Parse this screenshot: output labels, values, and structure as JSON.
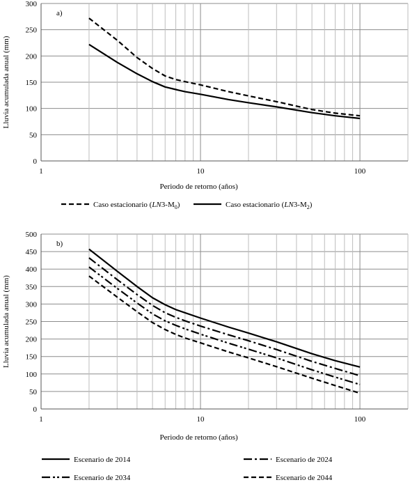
{
  "chart_data": [
    {
      "type": "line",
      "panel_label": "a)",
      "xlabel": "Periodo de retorno (años)",
      "ylabel": "Lluvia acumulada anual (mm)",
      "xscale": "log",
      "xlim": [
        1,
        200
      ],
      "ylim": [
        0,
        300
      ],
      "xticks": [
        1,
        10,
        100
      ],
      "xtick_labels": [
        "1",
        "10",
        "100"
      ],
      "yticks": [
        0,
        50,
        100,
        150,
        200,
        250,
        300
      ],
      "ytick_labels": [
        "0",
        "50",
        "100",
        "150",
        "200",
        "250",
        "300"
      ],
      "grid": true,
      "legend_position": "bottom",
      "series": [
        {
          "name_main": "Caso estacionario (",
          "name_italic": "LN",
          "name_after": "3-M",
          "name_sub": "0",
          "name_close": ")",
          "style": "dashed",
          "x": [
            2,
            3,
            4,
            5,
            6,
            7,
            8,
            10,
            15,
            20,
            30,
            50,
            70,
            100
          ],
          "y": [
            272,
            230,
            197,
            176,
            162,
            155,
            151,
            145,
            132,
            124,
            113,
            98,
            91,
            86
          ]
        },
        {
          "name_main": "Caso estacionario (",
          "name_italic": "LN",
          "name_after": "3-M",
          "name_sub": "2",
          "name_close": ")",
          "style": "solid",
          "x": [
            2,
            3,
            4,
            5,
            6,
            7,
            8,
            10,
            15,
            20,
            30,
            50,
            70,
            100
          ],
          "y": [
            222,
            188,
            166,
            151,
            141,
            136,
            132,
            127,
            117,
            111,
            103,
            92,
            86,
            81
          ]
        }
      ]
    },
    {
      "type": "line",
      "panel_label": "b)",
      "xlabel": "Periodo de retorno (años)",
      "ylabel": "Lluvia acumulada anual (mm)",
      "xscale": "log",
      "xlim": [
        1,
        200
      ],
      "ylim": [
        0,
        500
      ],
      "xticks": [
        1,
        10,
        100
      ],
      "xtick_labels": [
        "1",
        "10",
        "100"
      ],
      "yticks": [
        0,
        50,
        100,
        150,
        200,
        250,
        300,
        350,
        400,
        450,
        500
      ],
      "ytick_labels": [
        "0",
        "50",
        "100",
        "150",
        "200",
        "250",
        "300",
        "350",
        "400",
        "450",
        "500"
      ],
      "grid": true,
      "legend_position": "bottom",
      "series": [
        {
          "name": "Escenario de 2014",
          "style": "solid",
          "x": [
            2,
            3,
            4,
            5,
            6,
            7,
            8,
            10,
            15,
            20,
            30,
            50,
            70,
            100
          ],
          "y": [
            457,
            394,
            350,
            318,
            298,
            284,
            275,
            260,
            234,
            217,
            192,
            158,
            138,
            120
          ]
        },
        {
          "name": "Escenario de 2024",
          "style": "dash-dot",
          "x": [
            2,
            3,
            4,
            5,
            6,
            7,
            8,
            10,
            15,
            20,
            30,
            50,
            70,
            100
          ],
          "y": [
            432,
            370,
            327,
            296,
            275,
            262,
            252,
            237,
            212,
            195,
            170,
            136,
            116,
            95
          ]
        },
        {
          "name": "Escenario de 2034",
          "style": "dash-dot-dot",
          "x": [
            2,
            3,
            4,
            5,
            6,
            7,
            8,
            10,
            15,
            20,
            30,
            50,
            70,
            100
          ],
          "y": [
            406,
            345,
            303,
            272,
            252,
            239,
            229,
            214,
            188,
            171,
            146,
            112,
            91,
            70
          ]
        },
        {
          "name": "Escenario de 2044",
          "style": "dashed",
          "x": [
            2,
            3,
            4,
            5,
            6,
            7,
            8,
            10,
            15,
            20,
            30,
            50,
            70,
            100
          ],
          "y": [
            380,
            320,
            278,
            247,
            227,
            213,
            203,
            189,
            163,
            146,
            121,
            88,
            67,
            45
          ]
        }
      ]
    }
  ]
}
